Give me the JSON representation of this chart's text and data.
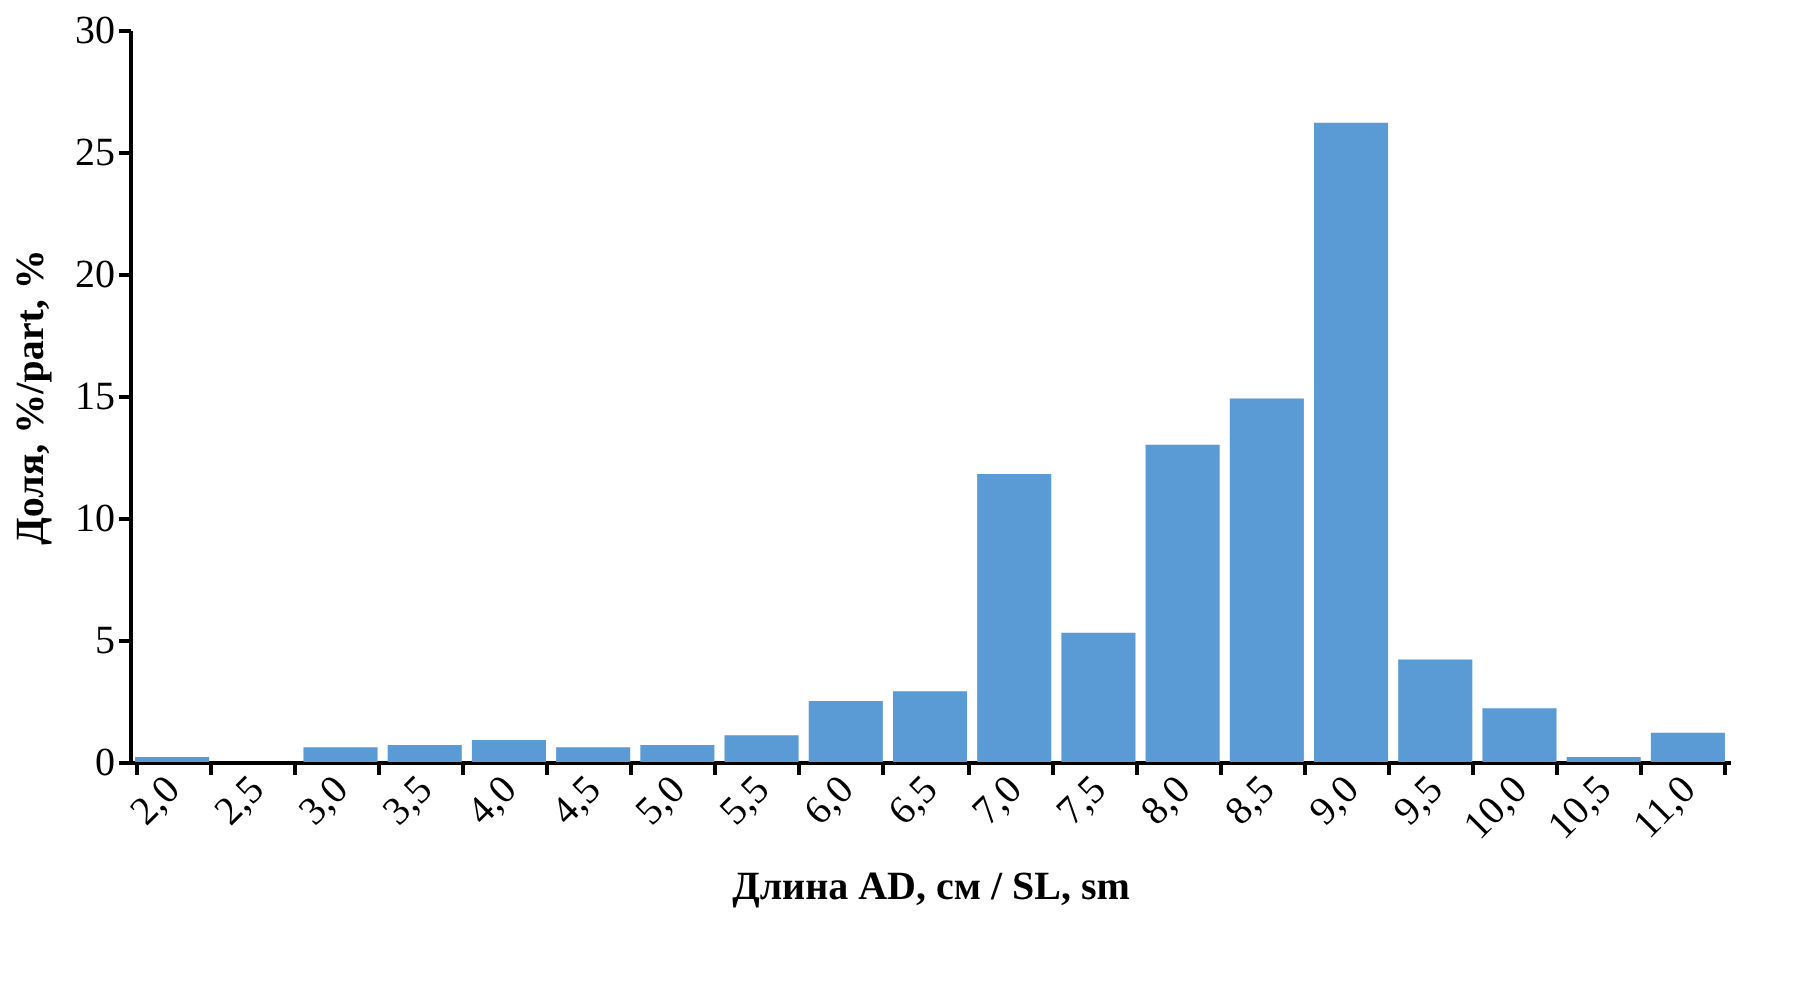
{
  "chart_data": {
    "type": "bar",
    "xlabel": "Длина AD, см  /  SL, sm",
    "ylabel": "Доля, %/part,  %",
    "categories": [
      "2,0",
      "2,5",
      "3,0",
      "3,5",
      "4,0",
      "4,5",
      "5,0",
      "5,5",
      "6,0",
      "6,5",
      "7,0",
      "7,5",
      "8,0",
      "8,5",
      "9,0",
      "9,5",
      "10,0",
      "10,5",
      "11,0"
    ],
    "values": [
      0.2,
      0,
      0.6,
      0.7,
      0.9,
      0.6,
      0.7,
      1.1,
      2.5,
      2.9,
      11.8,
      5.3,
      13.0,
      14.9,
      26.2,
      4.2,
      2.2,
      0.2,
      1.2
    ],
    "color": "#5b9bd5",
    "ylim": [
      0,
      30
    ],
    "yticks": [
      0,
      5,
      10,
      15,
      20,
      25,
      30
    ],
    "grid": false
  }
}
